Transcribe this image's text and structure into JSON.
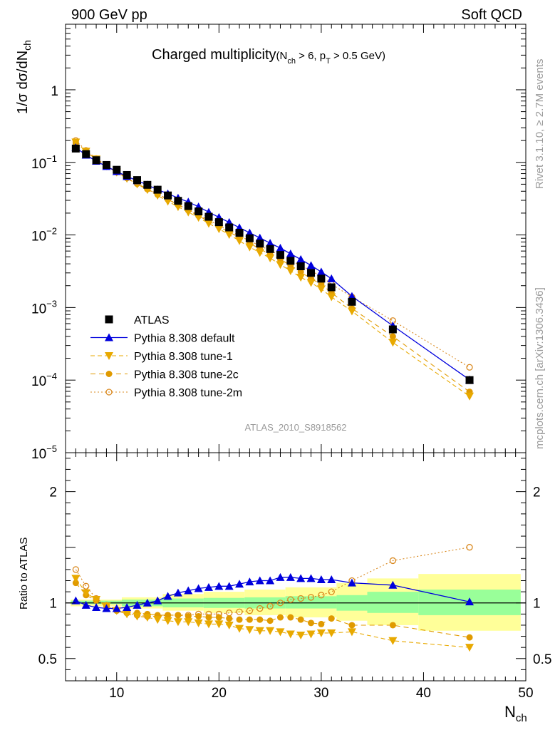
{
  "header": {
    "left": "900 GeV pp",
    "right": "Soft QCD"
  },
  "side": {
    "top": "Rivet 3.1.10, ≥ 2.7M events",
    "bottom": "mcplots.cern.ch [arXiv:1306.3436]"
  },
  "analysis_id": "ATLAS_2010_S8918562",
  "title": {
    "main": "Charged multiplicity",
    "cond_open": "(N",
    "cond_sub1": "ch",
    "cond_mid": " > 6, p",
    "cond_sub2": "T",
    "cond_end": " > 0.5 GeV)"
  },
  "ylabel_top": {
    "main": "1/σ dσ/dN",
    "sub": "ch"
  },
  "ylabel_bottom": "Ratio to ATLAS",
  "xlabel": {
    "main": "N",
    "sub": "ch"
  },
  "colors": {
    "data": "#000000",
    "default": "#0000dd",
    "tune1": "#e8a900",
    "tune2c": "#e09a00",
    "tune2m": "#d9881e",
    "band_inner": "#99ff99",
    "band_outer": "#ffff99"
  },
  "chart_data": [
    {
      "type": "scatter",
      "yscale": "log",
      "xlim": [
        5,
        50
      ],
      "ylim": [
        1e-05,
        8
      ],
      "xticks": [
        "10",
        "20",
        "30",
        "40",
        "50"
      ],
      "yticks": [
        {
          "base": "10",
          "exp": "−5",
          "v": 1e-05
        },
        {
          "base": "10",
          "exp": "−4",
          "v": 0.0001
        },
        {
          "base": "10",
          "exp": "−3",
          "v": 0.001
        },
        {
          "base": "10",
          "exp": "−2",
          "v": 0.01
        },
        {
          "base": "10",
          "exp": "−1",
          "v": 0.1
        },
        {
          "base": "1",
          "exp": "",
          "v": 1
        }
      ],
      "x": [
        6,
        7,
        8,
        9,
        10,
        11,
        12,
        13,
        14,
        15,
        16,
        17,
        18,
        19,
        20,
        21,
        22,
        23,
        24,
        25,
        26,
        27,
        28,
        29,
        30,
        31,
        33,
        37,
        44.5
      ],
      "series": [
        {
          "name": "ATLAS",
          "key": "atlas",
          "values": [
            0.155,
            0.13,
            0.107,
            0.092,
            0.079,
            0.067,
            0.057,
            0.049,
            0.042,
            0.035,
            0.0295,
            0.025,
            0.0211,
            0.0178,
            0.015,
            0.0127,
            0.0107,
            0.009,
            0.0076,
            0.0064,
            0.0053,
            0.0044,
            0.0037,
            0.003,
            0.0025,
            0.0019,
            0.0012,
            0.0005,
            0.0001
          ]
        },
        {
          "name": "Pythia 8.308 default",
          "key": "default",
          "values": [
            0.16,
            0.126,
            0.104,
            0.088,
            0.075,
            0.064,
            0.056,
            0.049,
            0.042,
            0.037,
            0.0323,
            0.0285,
            0.0245,
            0.0206,
            0.0175,
            0.0149,
            0.0126,
            0.0107,
            0.0091,
            0.0077,
            0.0066,
            0.0055,
            0.0046,
            0.0038,
            0.0031,
            0.0025,
            0.00143,
            0.00056,
            0.000101
          ]
        },
        {
          "name": "Pythia 8.308 tune-1",
          "key": "tune1",
          "values": [
            0.19,
            0.142,
            0.111,
            0.089,
            0.073,
            0.06,
            0.05,
            0.042,
            0.035,
            0.029,
            0.0244,
            0.0206,
            0.0174,
            0.0144,
            0.0121,
            0.0101,
            0.0083,
            0.0068,
            0.0057,
            0.0048,
            0.0039,
            0.0032,
            0.0026,
            0.0022,
            0.0018,
            0.0014,
            0.00089,
            0.00033,
            6e-05
          ]
        },
        {
          "name": "Pythia 8.308 tune-2c",
          "key": "tune2c",
          "values": [
            0.185,
            0.14,
            0.11,
            0.089,
            0.073,
            0.061,
            0.051,
            0.043,
            0.036,
            0.031,
            0.0259,
            0.0218,
            0.0183,
            0.0154,
            0.013,
            0.011,
            0.0092,
            0.0077,
            0.0064,
            0.0054,
            0.0046,
            0.0038,
            0.0031,
            0.0025,
            0.0021,
            0.0016,
            0.00097,
            0.0004,
            6.9e-05
          ]
        },
        {
          "name": "Pythia 8.308 tune-2m",
          "key": "tune2m",
          "values": [
            0.2,
            0.146,
            0.113,
            0.09,
            0.074,
            0.061,
            0.051,
            0.043,
            0.037,
            0.031,
            0.0263,
            0.0224,
            0.0189,
            0.016,
            0.0135,
            0.0115,
            0.0097,
            0.0083,
            0.0071,
            0.0061,
            0.0052,
            0.0044,
            0.0038,
            0.0032,
            0.0027,
            0.0021,
            0.0014,
            0.00066,
            0.00015
          ]
        }
      ],
      "legend": "left-lower"
    },
    {
      "type": "scatter",
      "xlim": [
        5,
        50
      ],
      "ylim": [
        0.3,
        2.35
      ],
      "xticks": [
        "10",
        "20",
        "30",
        "40",
        "50"
      ],
      "yticks": [
        "0.5",
        "1",
        "2"
      ],
      "x": [
        6,
        7,
        8,
        9,
        10,
        11,
        12,
        13,
        14,
        15,
        16,
        17,
        18,
        19,
        20,
        21,
        22,
        23,
        24,
        25,
        26,
        27,
        28,
        29,
        30,
        31,
        33,
        37,
        44.5
      ],
      "series": [
        {
          "key": "default",
          "values": [
            1.02,
            0.98,
            0.96,
            0.95,
            0.95,
            0.96,
            0.98,
            1.0,
            1.02,
            1.06,
            1.09,
            1.11,
            1.13,
            1.14,
            1.15,
            1.15,
            1.17,
            1.19,
            1.2,
            1.2,
            1.23,
            1.23,
            1.22,
            1.22,
            1.21,
            1.21,
            1.18,
            1.16,
            1.01
          ]
        },
        {
          "key": "tune1",
          "values": [
            1.22,
            1.09,
            1.03,
            0.97,
            0.93,
            0.9,
            0.88,
            0.87,
            0.85,
            0.84,
            0.83,
            0.83,
            0.82,
            0.81,
            0.81,
            0.8,
            0.77,
            0.76,
            0.75,
            0.75,
            0.74,
            0.72,
            0.71,
            0.72,
            0.73,
            0.73,
            0.74,
            0.66,
            0.6
          ]
        },
        {
          "key": "tune2c",
          "values": [
            1.18,
            1.07,
            1.02,
            0.97,
            0.93,
            0.91,
            0.91,
            0.9,
            0.89,
            0.89,
            0.89,
            0.88,
            0.88,
            0.87,
            0.87,
            0.86,
            0.85,
            0.85,
            0.85,
            0.84,
            0.87,
            0.87,
            0.85,
            0.82,
            0.81,
            0.86,
            0.8,
            0.8,
            0.69
          ]
        },
        {
          "key": "tune2m",
          "values": [
            1.3,
            1.15,
            1.04,
            0.98,
            0.94,
            0.91,
            0.89,
            0.88,
            0.88,
            0.89,
            0.89,
            0.89,
            0.9,
            0.9,
            0.9,
            0.91,
            0.92,
            0.93,
            0.95,
            0.97,
            1.0,
            1.03,
            1.04,
            1.05,
            1.07,
            1.1,
            1.2,
            1.38,
            1.5
          ]
        }
      ],
      "band_x": [
        5.5,
        10.5,
        14.5,
        18.5,
        22.5,
        26.5,
        31.5,
        34.5,
        39.5,
        49.5
      ],
      "band_inner": [
        [
          0.99,
          1.02
        ],
        [
          0.97,
          1.03
        ],
        [
          0.96,
          1.04
        ],
        [
          0.955,
          1.045
        ],
        [
          0.95,
          1.05
        ],
        [
          0.95,
          1.06
        ],
        [
          0.93,
          1.07
        ],
        [
          0.91,
          1.1
        ],
        [
          0.89,
          1.12
        ]
      ],
      "band_outer": [
        [
          0.97,
          1.03
        ],
        [
          0.95,
          1.05
        ],
        [
          0.93,
          1.08
        ],
        [
          0.91,
          1.1
        ],
        [
          0.89,
          1.12
        ],
        [
          0.87,
          1.14
        ],
        [
          0.84,
          1.18
        ],
        [
          0.8,
          1.22
        ],
        [
          0.75,
          1.26
        ]
      ]
    }
  ]
}
